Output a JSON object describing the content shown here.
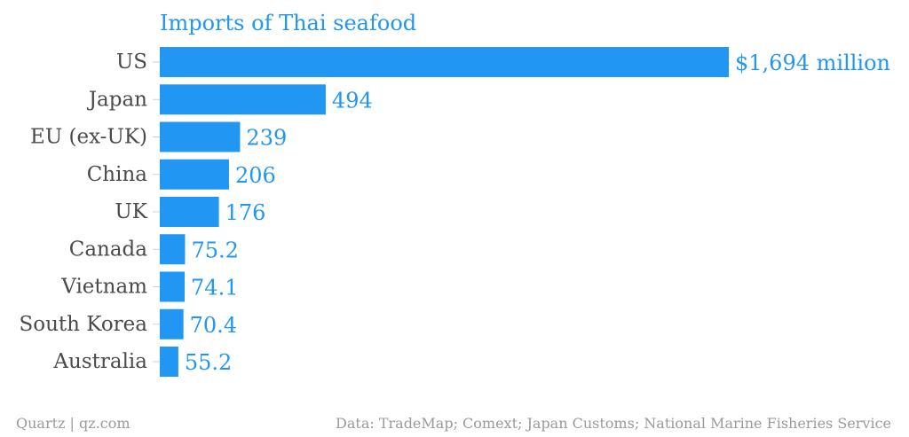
{
  "chart_data": {
    "type": "bar",
    "orientation": "horizontal",
    "title": "Imports of Thai seafood",
    "categories": [
      "US",
      "Japan",
      "EU (ex-UK)",
      "China",
      "UK",
      "Canada",
      "Vietnam",
      "South Korea",
      "Australia"
    ],
    "values": [
      1694,
      494,
      239,
      206,
      176,
      75.2,
      74.1,
      70.4,
      55.2
    ],
    "value_labels": [
      "$1,694 million",
      "494",
      "239",
      "206",
      "176",
      "75.2",
      "74.1",
      "70.4",
      "55.2"
    ],
    "xlim": [
      0,
      1694
    ],
    "grid": false,
    "bar_color": "#2196f3"
  },
  "footer": {
    "credit": "Quartz | qz.com",
    "source": "Data: TradeMap; Comext; Japan Customs; National Marine Fisheries Service"
  }
}
